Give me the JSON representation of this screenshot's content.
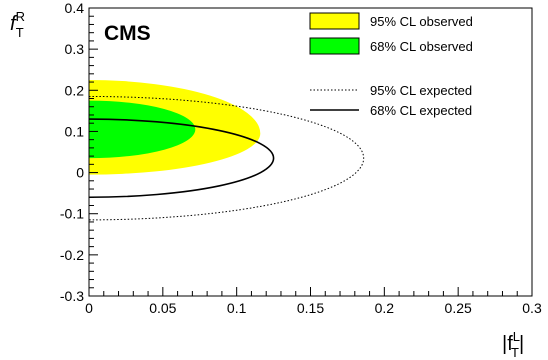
{
  "chart_data": {
    "type": "contour",
    "title": "",
    "experiment_label": "CMS",
    "xlabel": {
      "base": "|f",
      "sup": "L",
      "sub": "T",
      "close": "|"
    },
    "ylabel": {
      "base": "f",
      "sup": "R",
      "sub": "T"
    },
    "xlim": [
      0,
      0.3
    ],
    "ylim": [
      -0.3,
      0.4
    ],
    "x_ticks": [
      {
        "value": 0,
        "label": "0"
      },
      {
        "value": 0.05,
        "label": "0.05"
      },
      {
        "value": 0.1,
        "label": "0.1"
      },
      {
        "value": 0.15,
        "label": "0.15"
      },
      {
        "value": 0.2,
        "label": "0.2"
      },
      {
        "value": 0.25,
        "label": "0.25"
      },
      {
        "value": 0.3,
        "label": "0.3"
      }
    ],
    "y_ticks": [
      {
        "value": -0.3,
        "label": "-0.3"
      },
      {
        "value": -0.2,
        "label": "-0.2"
      },
      {
        "value": -0.1,
        "label": "-0.1"
      },
      {
        "value": 0,
        "label": "0"
      },
      {
        "value": 0.1,
        "label": "0.1"
      },
      {
        "value": 0.2,
        "label": "0.2"
      },
      {
        "value": 0.3,
        "label": "0.3"
      },
      {
        "value": 0.4,
        "label": "0.4"
      }
    ],
    "legend_position": "top-right",
    "series": [
      {
        "name": "95% CL observed",
        "style": "filled",
        "color": "#ffff00",
        "center": [
          0,
          0.095
        ],
        "x_max": 0.116,
        "y_min": -0.005,
        "y_max": 0.225
      },
      {
        "name": "68% CL observed",
        "style": "filled",
        "color": "#00ff00",
        "center": [
          0,
          0.105
        ],
        "x_max": 0.072,
        "y_min": 0.035,
        "y_max": 0.175
      },
      {
        "name": "95% CL expected",
        "style": "dotted",
        "color": "#000000",
        "center": [
          0,
          0.035
        ],
        "x_max": 0.186,
        "y_min": -0.115,
        "y_max": 0.185
      },
      {
        "name": "68% CL expected",
        "style": "solid",
        "color": "#000000",
        "center": [
          0,
          0.035
        ],
        "x_max": 0.125,
        "y_min": -0.06,
        "y_max": 0.13
      }
    ]
  }
}
